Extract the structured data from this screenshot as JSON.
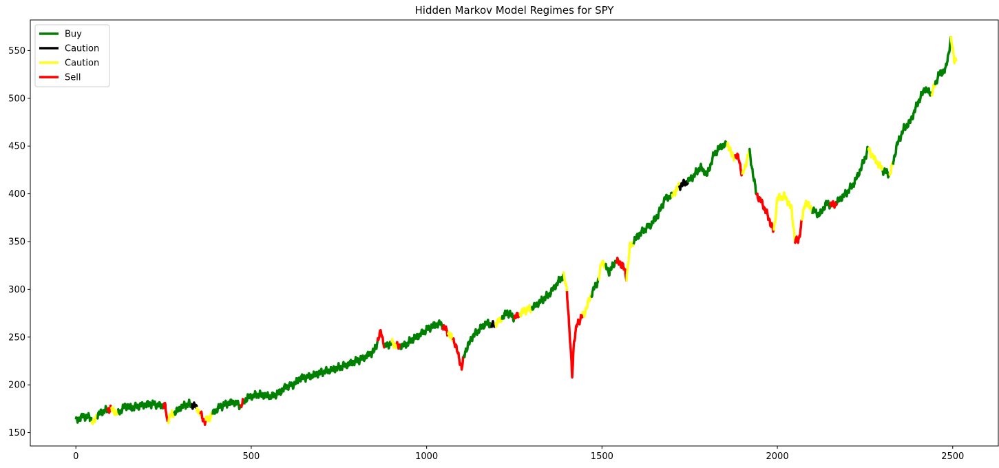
{
  "chart_data": {
    "type": "line",
    "title": "Hidden Markov Model Regimes for SPY",
    "xlabel": "",
    "ylabel": "",
    "xlim": [
      -130,
      2630
    ],
    "ylim": [
      136,
      582
    ],
    "x_ticks": [
      0,
      500,
      1000,
      1500,
      2000,
      2500
    ],
    "y_ticks": [
      150,
      200,
      250,
      300,
      350,
      400,
      450,
      500,
      550
    ],
    "grid": false,
    "legend_position": "top-left",
    "price_path": [
      [
        0,
        162
      ],
      [
        20,
        167
      ],
      [
        40,
        166
      ],
      [
        50,
        160
      ],
      [
        60,
        168
      ],
      [
        80,
        173
      ],
      [
        100,
        175
      ],
      [
        120,
        170
      ],
      [
        140,
        178
      ],
      [
        160,
        176
      ],
      [
        180,
        178
      ],
      [
        200,
        179
      ],
      [
        220,
        180
      ],
      [
        240,
        178
      ],
      [
        255,
        178
      ],
      [
        260,
        162
      ],
      [
        270,
        168
      ],
      [
        290,
        173
      ],
      [
        300,
        177
      ],
      [
        320,
        180
      ],
      [
        340,
        178
      ],
      [
        355,
        170
      ],
      [
        365,
        162
      ],
      [
        375,
        163
      ],
      [
        390,
        170
      ],
      [
        410,
        177
      ],
      [
        430,
        180
      ],
      [
        450,
        182
      ],
      [
        470,
        178
      ],
      [
        490,
        187
      ],
      [
        520,
        190
      ],
      [
        560,
        188
      ],
      [
        580,
        192
      ],
      [
        600,
        198
      ],
      [
        620,
        200
      ],
      [
        640,
        207
      ],
      [
        660,
        208
      ],
      [
        700,
        213
      ],
      [
        740,
        217
      ],
      [
        780,
        222
      ],
      [
        820,
        228
      ],
      [
        850,
        235
      ],
      [
        870,
        256
      ],
      [
        880,
        240
      ],
      [
        900,
        244
      ],
      [
        920,
        240
      ],
      [
        940,
        242
      ],
      [
        960,
        248
      ],
      [
        980,
        252
      ],
      [
        1000,
        258
      ],
      [
        1020,
        262
      ],
      [
        1040,
        264
      ],
      [
        1060,
        255
      ],
      [
        1080,
        245
      ],
      [
        1100,
        218
      ],
      [
        1110,
        235
      ],
      [
        1130,
        250
      ],
      [
        1150,
        258
      ],
      [
        1170,
        265
      ],
      [
        1190,
        262
      ],
      [
        1210,
        268
      ],
      [
        1230,
        276
      ],
      [
        1250,
        270
      ],
      [
        1280,
        278
      ],
      [
        1300,
        280
      ],
      [
        1320,
        286
      ],
      [
        1350,
        295
      ],
      [
        1380,
        310
      ],
      [
        1390,
        315
      ],
      [
        1400,
        300
      ],
      [
        1410,
        240
      ],
      [
        1415,
        210
      ],
      [
        1420,
        245
      ],
      [
        1430,
        265
      ],
      [
        1450,
        275
      ],
      [
        1470,
        295
      ],
      [
        1490,
        310
      ],
      [
        1500,
        330
      ],
      [
        1520,
        318
      ],
      [
        1540,
        330
      ],
      [
        1560,
        325
      ],
      [
        1570,
        312
      ],
      [
        1580,
        345
      ],
      [
        1600,
        355
      ],
      [
        1620,
        362
      ],
      [
        1640,
        368
      ],
      [
        1660,
        378
      ],
      [
        1680,
        395
      ],
      [
        1700,
        398
      ],
      [
        1720,
        408
      ],
      [
        1740,
        412
      ],
      [
        1760,
        418
      ],
      [
        1780,
        428
      ],
      [
        1800,
        420
      ],
      [
        1820,
        442
      ],
      [
        1840,
        450
      ],
      [
        1860,
        452
      ],
      [
        1870,
        440
      ],
      [
        1890,
        438
      ],
      [
        1900,
        418
      ],
      [
        1920,
        445
      ],
      [
        1940,
        400
      ],
      [
        1960,
        388
      ],
      [
        1980,
        370
      ],
      [
        1990,
        360
      ],
      [
        2000,
        395
      ],
      [
        2020,
        398
      ],
      [
        2040,
        385
      ],
      [
        2050,
        352
      ],
      [
        2060,
        350
      ],
      [
        2070,
        372
      ],
      [
        2080,
        392
      ],
      [
        2100,
        383
      ],
      [
        2120,
        378
      ],
      [
        2140,
        390
      ],
      [
        2160,
        388
      ],
      [
        2180,
        395
      ],
      [
        2200,
        402
      ],
      [
        2220,
        412
      ],
      [
        2240,
        428
      ],
      [
        2260,
        448
      ],
      [
        2270,
        440
      ],
      [
        2280,
        435
      ],
      [
        2300,
        425
      ],
      [
        2320,
        420
      ],
      [
        2330,
        432
      ],
      [
        2340,
        450
      ],
      [
        2360,
        468
      ],
      [
        2380,
        476
      ],
      [
        2400,
        495
      ],
      [
        2420,
        510
      ],
      [
        2440,
        505
      ],
      [
        2460,
        525
      ],
      [
        2480,
        530
      ],
      [
        2495,
        562
      ],
      [
        2505,
        540
      ]
    ],
    "regime_runs": [
      [
        0,
        45,
        0
      ],
      [
        45,
        60,
        2
      ],
      [
        60,
        90,
        0
      ],
      [
        90,
        100,
        3
      ],
      [
        100,
        120,
        2
      ],
      [
        120,
        250,
        0
      ],
      [
        250,
        262,
        3
      ],
      [
        262,
        280,
        2
      ],
      [
        280,
        330,
        0
      ],
      [
        330,
        345,
        1
      ],
      [
        345,
        355,
        2
      ],
      [
        355,
        370,
        3
      ],
      [
        370,
        390,
        2
      ],
      [
        390,
        470,
        0
      ],
      [
        470,
        480,
        3
      ],
      [
        480,
        860,
        0
      ],
      [
        860,
        880,
        3
      ],
      [
        880,
        900,
        0
      ],
      [
        900,
        915,
        2
      ],
      [
        915,
        925,
        3
      ],
      [
        925,
        1045,
        0
      ],
      [
        1045,
        1060,
        3
      ],
      [
        1060,
        1075,
        2
      ],
      [
        1075,
        1090,
        3
      ],
      [
        1090,
        1105,
        3
      ],
      [
        1105,
        1185,
        0
      ],
      [
        1185,
        1195,
        1
      ],
      [
        1195,
        1215,
        2
      ],
      [
        1215,
        1250,
        0
      ],
      [
        1250,
        1265,
        3
      ],
      [
        1265,
        1300,
        2
      ],
      [
        1300,
        1390,
        0
      ],
      [
        1390,
        1400,
        2
      ],
      [
        1400,
        1445,
        3
      ],
      [
        1445,
        1470,
        2
      ],
      [
        1470,
        1490,
        0
      ],
      [
        1490,
        1510,
        2
      ],
      [
        1510,
        1540,
        0
      ],
      [
        1540,
        1570,
        3
      ],
      [
        1570,
        1590,
        2
      ],
      [
        1590,
        1700,
        0
      ],
      [
        1700,
        1720,
        2
      ],
      [
        1720,
        1745,
        1
      ],
      [
        1745,
        1855,
        0
      ],
      [
        1855,
        1880,
        2
      ],
      [
        1880,
        1900,
        3
      ],
      [
        1900,
        1920,
        2
      ],
      [
        1920,
        1940,
        0
      ],
      [
        1940,
        1990,
        3
      ],
      [
        1990,
        2050,
        2
      ],
      [
        2050,
        2070,
        3
      ],
      [
        2070,
        2100,
        2
      ],
      [
        2100,
        2150,
        0
      ],
      [
        2150,
        2170,
        3
      ],
      [
        2170,
        2260,
        0
      ],
      [
        2260,
        2300,
        2
      ],
      [
        2300,
        2320,
        0
      ],
      [
        2320,
        2330,
        2
      ],
      [
        2330,
        2440,
        0
      ],
      [
        2440,
        2450,
        2
      ],
      [
        2450,
        2495,
        0
      ],
      [
        2495,
        2510,
        2
      ]
    ],
    "series": [
      {
        "name": "Buy",
        "color": "#008000"
      },
      {
        "name": "Caution",
        "color": "#000000"
      },
      {
        "name": "Caution",
        "color": "#ffff1a"
      },
      {
        "name": "Sell",
        "color": "#ff0000"
      }
    ]
  }
}
